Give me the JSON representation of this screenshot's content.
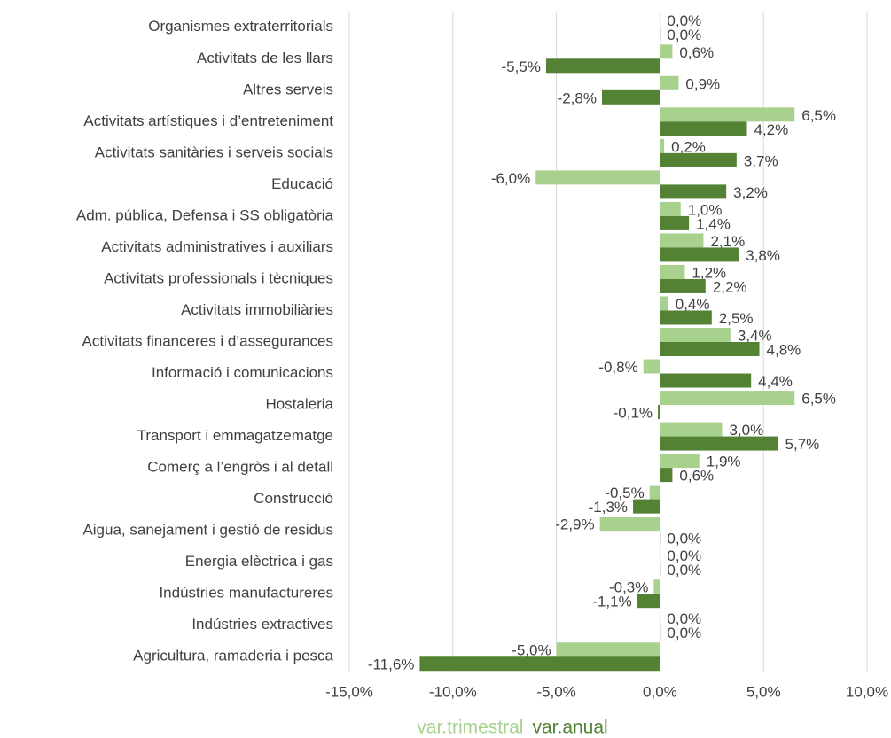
{
  "chart_data": {
    "type": "bar",
    "orientation": "horizontal",
    "categories": [
      "Organismes extraterritorials",
      "Activitats de les llars",
      "Altres serveis",
      "Activitats artístiques i d’entreteniment",
      "Activitats sanitàries i serveis socials",
      "Educació",
      "Adm. pública, Defensa i SS obligatòria",
      "Activitats administratives i auxiliars",
      "Activitats professionals i tècniques",
      "Activitats immobiliàries",
      "Activitats financeres i d’assegurances",
      "Informació i comunicacions",
      "Hostaleria",
      "Transport i emmagatzematge",
      "Comerç a l’engròs i al detall",
      "Construcció",
      "Aigua, sanejament i gestió de residus",
      "Energia elèctrica i gas",
      "Indústries manufactureres",
      "Indústries extractives",
      "Agricultura, ramaderia i pesca"
    ],
    "series": [
      {
        "name": "var.trimestral",
        "color": "#a9d18e",
        "values": [
          0.0,
          0.6,
          0.9,
          6.5,
          0.2,
          -6.0,
          1.0,
          2.1,
          1.2,
          0.4,
          3.4,
          -0.8,
          6.5,
          3.0,
          1.9,
          -0.5,
          -2.9,
          0.0,
          -0.3,
          0.0,
          -5.0
        ],
        "value_labels": [
          "0,0%",
          "0,6%",
          "0,9%",
          "6,5%",
          "0,2%",
          "-6,0%",
          "1,0%",
          "2,1%",
          "1,2%",
          "0,4%",
          "3,4%",
          "-0,8%",
          "6,5%",
          "3,0%",
          "1,9%",
          "-0,5%",
          "-2,9%",
          "0,0%",
          "-0,3%",
          "0,0%",
          "-5,0%"
        ]
      },
      {
        "name": "var.anual",
        "color": "#548235",
        "values": [
          0.0,
          -5.5,
          -2.8,
          4.2,
          3.7,
          3.2,
          1.4,
          3.8,
          2.2,
          2.5,
          4.8,
          4.4,
          -0.1,
          5.7,
          0.6,
          -1.3,
          0.0,
          0.0,
          -1.1,
          0.0,
          -11.6
        ],
        "value_labels": [
          "0,0%",
          "-5,5%",
          "-2,8%",
          "4,2%",
          "3,7%",
          "3,2%",
          "1,4%",
          "3,8%",
          "2,2%",
          "2,5%",
          "4,8%",
          "4,4%",
          "-0,1%",
          "5,7%",
          "0,6%",
          "-1,3%",
          "0,0%",
          "0,0%",
          "-1,1%",
          "0,0%",
          "-11,6%"
        ]
      }
    ],
    "xlim": [
      -15,
      10
    ],
    "xticks": [
      {
        "value": -15,
        "label": "-15,0%"
      },
      {
        "value": -10,
        "label": "-10,0%"
      },
      {
        "value": -5,
        "label": "-5,0%"
      },
      {
        "value": 0,
        "label": "0,0%"
      },
      {
        "value": 5,
        "label": "5,0%"
      },
      {
        "value": 10,
        "label": "10,0%"
      }
    ],
    "grid": true,
    "legend": "bottom"
  }
}
